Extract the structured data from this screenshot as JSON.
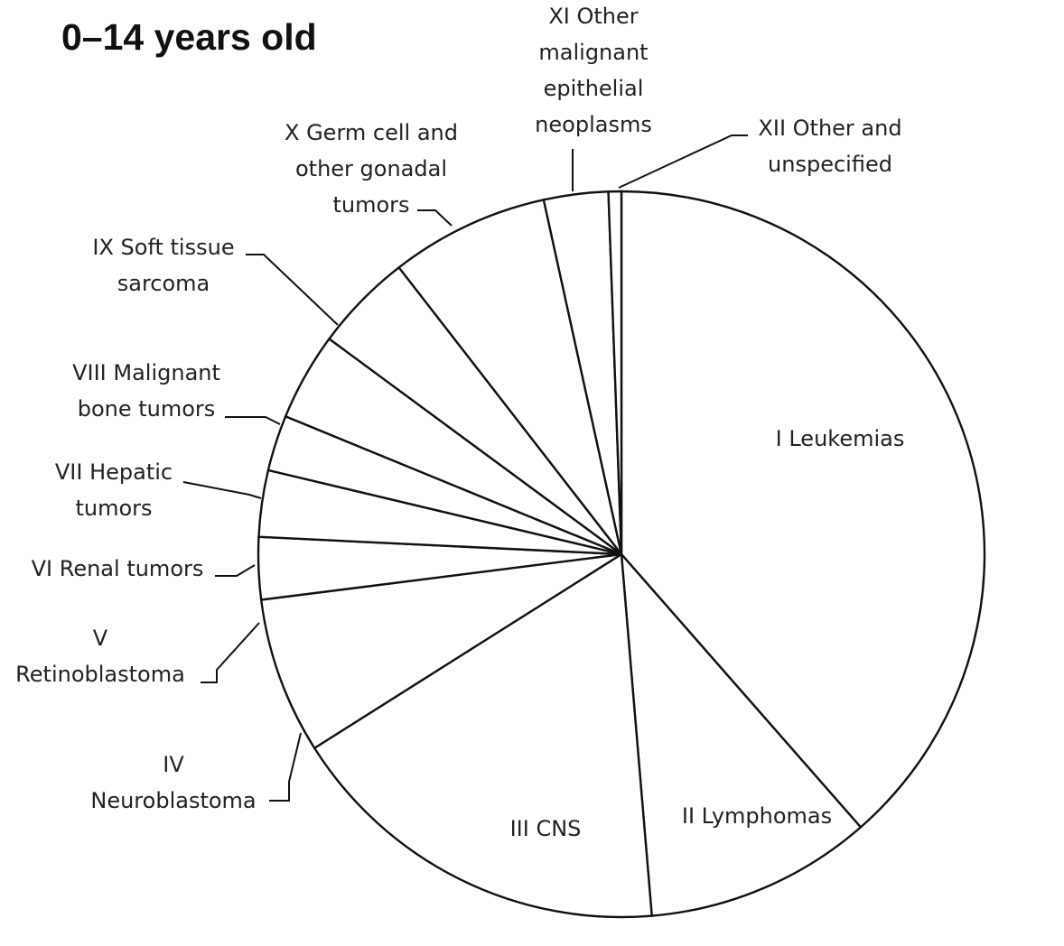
{
  "chart_data": {
    "type": "pie",
    "title": "0–14 years old",
    "slices": [
      {
        "label": "I Leukemias",
        "value": 40.4
      },
      {
        "label": "II Lymphomas",
        "value": 10.6
      },
      {
        "label": "III CNS",
        "value": 18.2
      },
      {
        "label": "IV Neuroblastoma",
        "value": 7.3
      },
      {
        "label": "V Retinoblastoma",
        "value": 2.9
      },
      {
        "label": "VI Renal tumors",
        "value": 3.1
      },
      {
        "label": "VII Hepatic tumors",
        "value": 2.6
      },
      {
        "label": "VIII Malignant bone tumors",
        "value": 4.1
      },
      {
        "label": "IX Soft tissue sarcoma",
        "value": 4.6
      },
      {
        "label": "X Germ cell and other gonadal tumors",
        "value": 7.4
      },
      {
        "label": "XI Other malignant epithelial neoplasms",
        "value": 3.0
      },
      {
        "label": "XII Other and unspecified",
        "value": 0.6
      }
    ],
    "colors": {
      "slice_fill": "#ffffff",
      "stroke": "#111111",
      "text": "#222222"
    },
    "legend": "none"
  }
}
